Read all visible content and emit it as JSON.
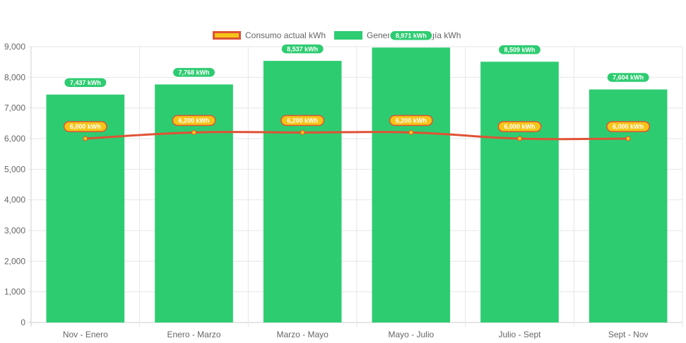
{
  "chart_data": {
    "type": "bar",
    "categories": [
      "Nov - Enero",
      "Enero - Marzo",
      "Marzo - Mayo",
      "Mayo - Julio",
      "Julio - Sept",
      "Sept - Nov"
    ],
    "series": [
      {
        "name": "Consumo actual kWh",
        "type": "line",
        "values": [
          6000,
          6200,
          6200,
          6200,
          6000,
          6000
        ],
        "labels": [
          "6,000 kWh",
          "6,200 kWh",
          "6,200 kWh",
          "6,200 kWh",
          "6,000 kWh",
          "6,000 kWh"
        ],
        "color": "#e05235",
        "fill": "#f5c518"
      },
      {
        "name": "Generación energía kWh",
        "type": "bar",
        "values": [
          7437,
          7768,
          8537,
          8971,
          8509,
          7604
        ],
        "labels": [
          "7,437 kWh",
          "7,768 kWh",
          "8,537 kWh",
          "8,971 kWh",
          "8,509 kWh",
          "7,604 kWh"
        ],
        "color": "#2ecc71"
      }
    ],
    "ylim": [
      0,
      9000
    ],
    "yticks": [
      "0",
      "1,000",
      "2,000",
      "3,000",
      "4,000",
      "5,000",
      "6,000",
      "7,000",
      "8,000",
      "9,000"
    ],
    "grid": true,
    "legend_position": "top-center"
  }
}
